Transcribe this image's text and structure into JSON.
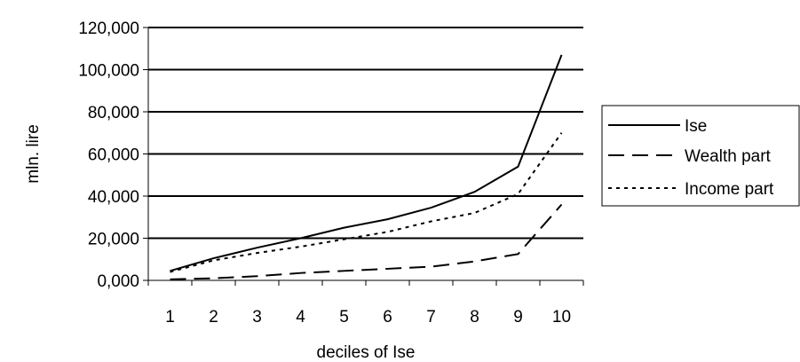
{
  "chart_data": {
    "type": "line",
    "xlabel": "deciles of Ise",
    "ylabel": "mln. lire",
    "x": [
      1,
      2,
      3,
      4,
      5,
      6,
      7,
      8,
      9,
      10
    ],
    "ylim": [
      0,
      120000
    ],
    "yticks": [
      0,
      20000,
      40000,
      60000,
      80000,
      100000,
      120000
    ],
    "ytick_labels": [
      "0,000",
      "20,000",
      "40,000",
      "60,000",
      "80,000",
      "100,000",
      "120,000"
    ],
    "xtick_labels": [
      "1",
      "2",
      "3",
      "4",
      "5",
      "6",
      "7",
      "8",
      "9",
      "10"
    ],
    "grid": "horizontal",
    "legend_position": "right",
    "series": [
      {
        "name": "Ise",
        "values": [
          4500,
          10500,
          15500,
          20000,
          25000,
          29000,
          34500,
          42000,
          54000,
          107000
        ],
        "style": "solid",
        "color": "#000000"
      },
      {
        "name": "Wealth part",
        "values": [
          500,
          1000,
          2000,
          3500,
          4500,
          5500,
          6500,
          9000,
          12500,
          36000
        ],
        "style": "dashed",
        "color": "#000000"
      },
      {
        "name": "Income part",
        "values": [
          4000,
          9500,
          13000,
          16000,
          19500,
          23000,
          28000,
          32000,
          41000,
          70000
        ],
        "style": "dotted",
        "color": "#000000"
      }
    ]
  }
}
